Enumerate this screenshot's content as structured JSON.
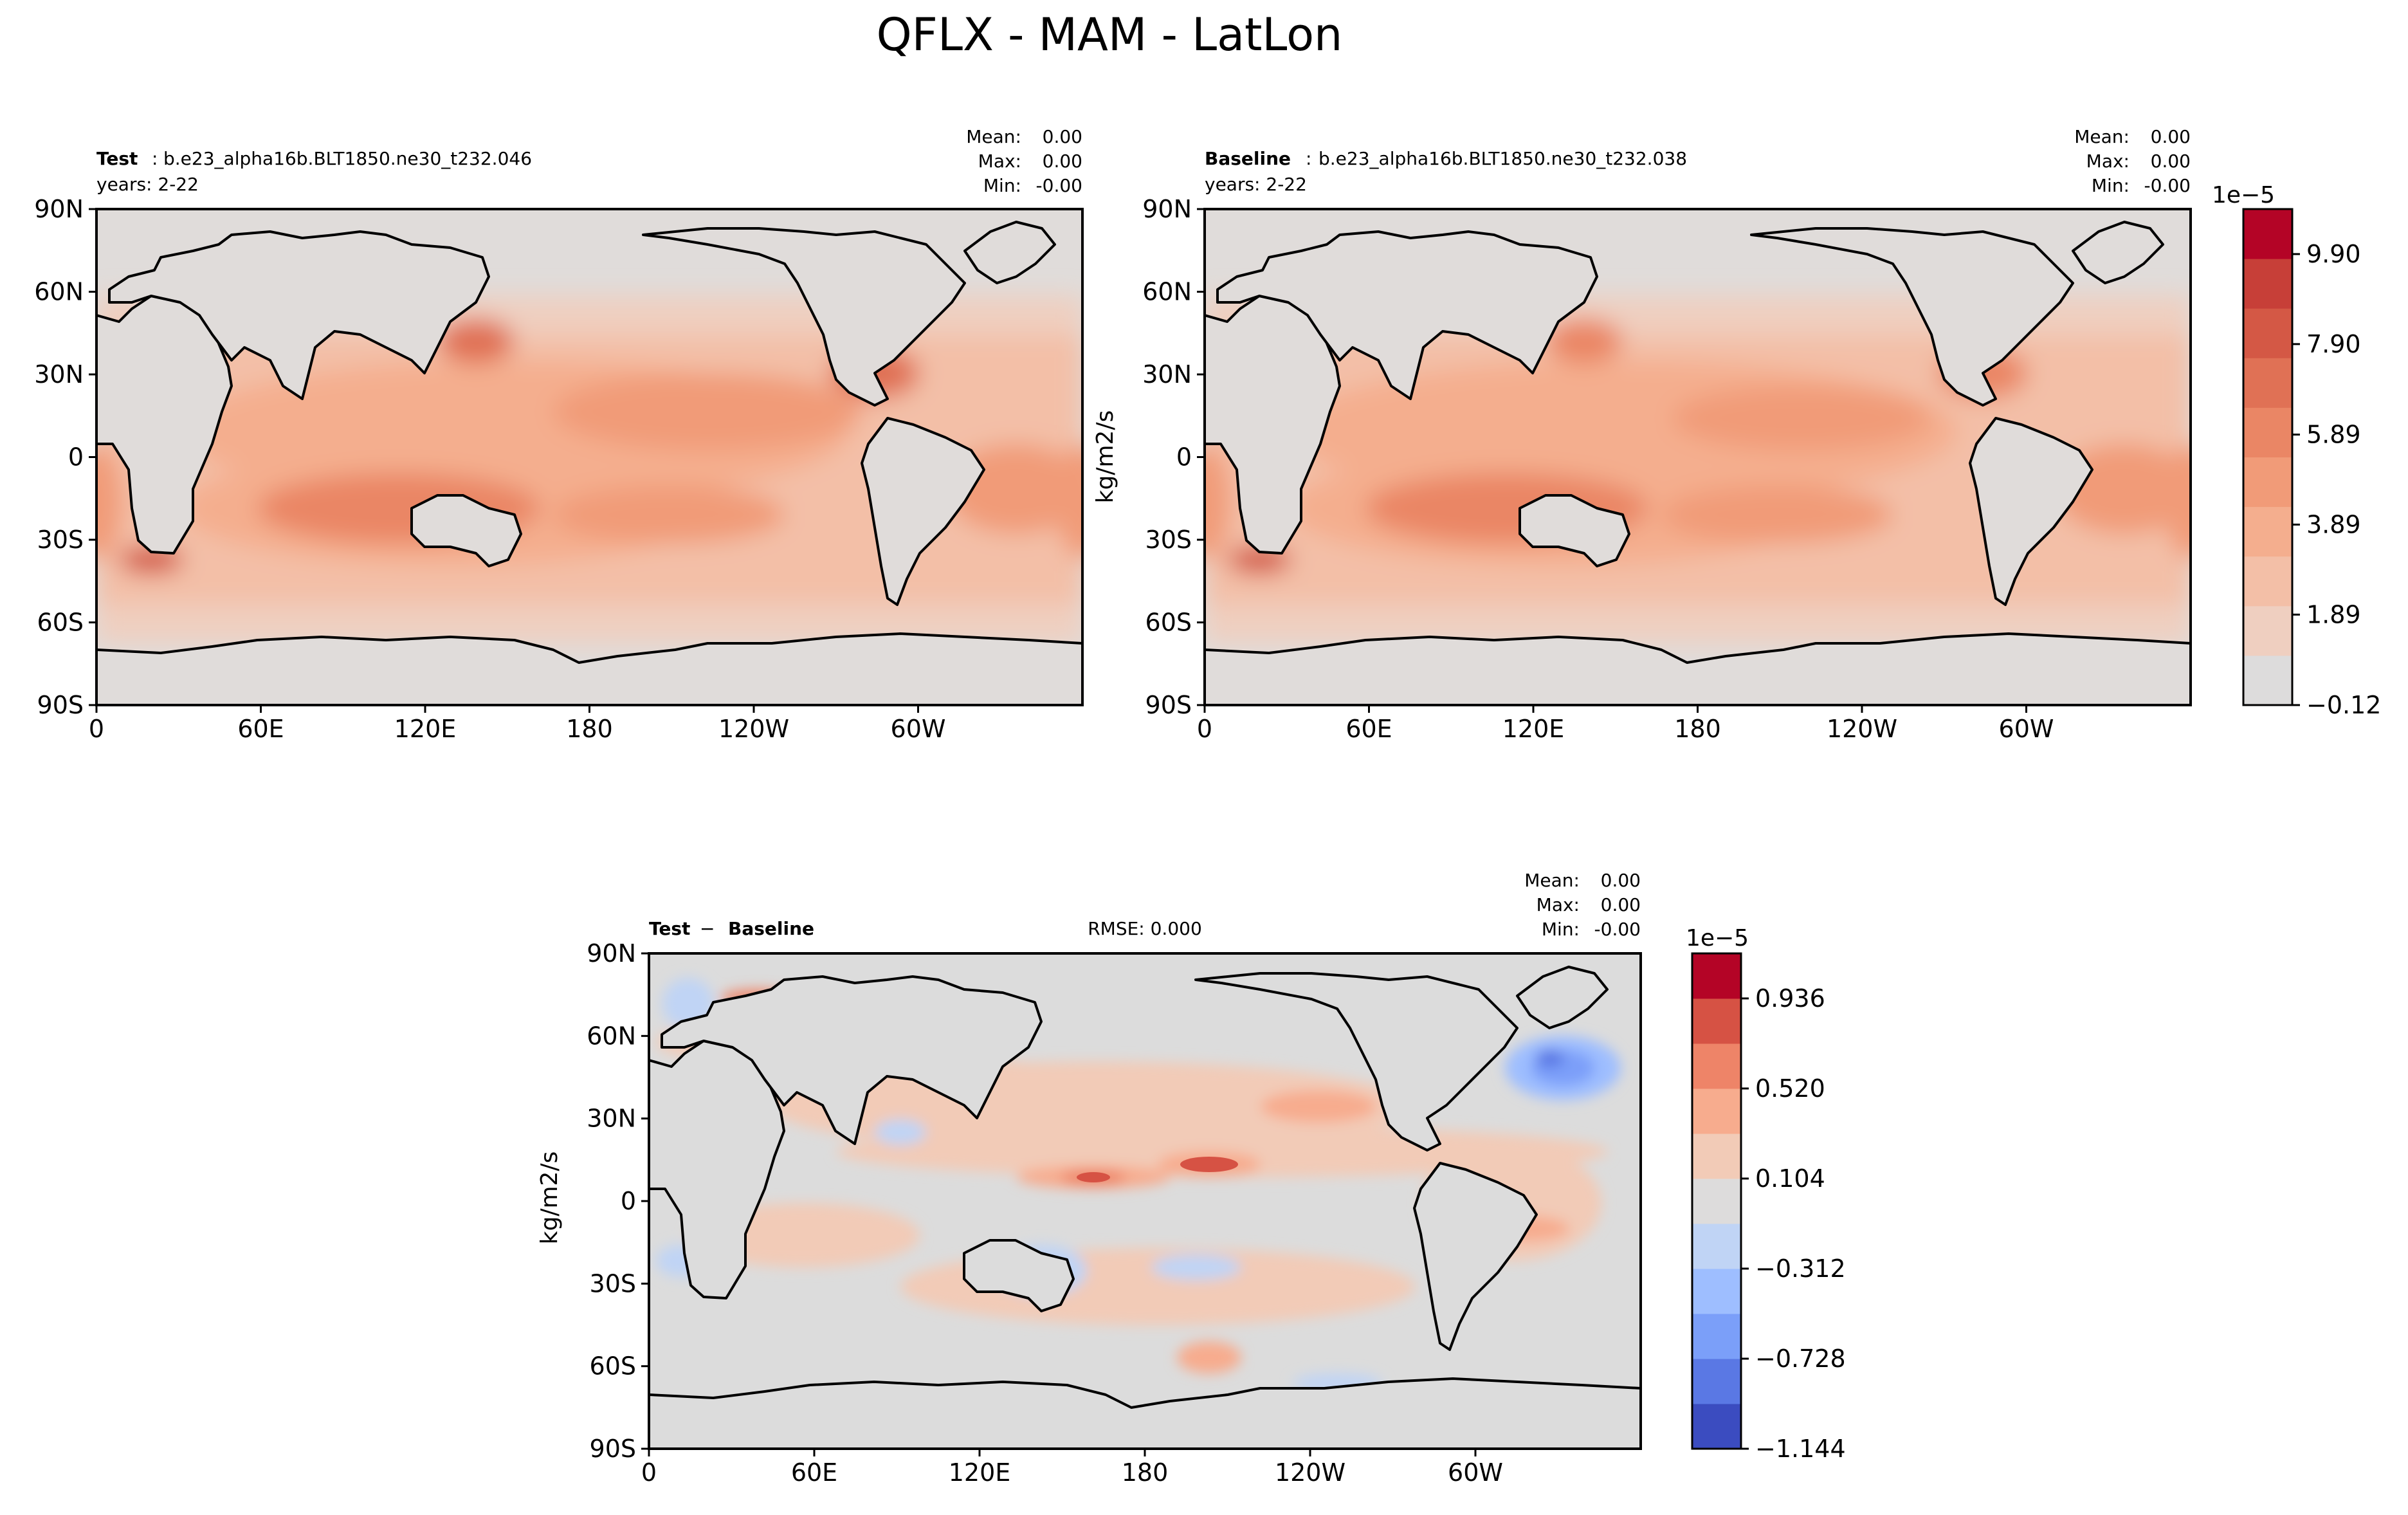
{
  "figure": {
    "title": "QFLX - MAM - LatLon"
  },
  "colors": {
    "axis": "#000000",
    "ocean_base": "#e0dcda",
    "land_diff": "#dcdcdc",
    "seq_levels": [
      "#dddcdc",
      "#efcfc0",
      "#f3bfa7",
      "#f4ae8e",
      "#f19b78",
      "#ea8665",
      "#e07155",
      "#d45845",
      "#c73f38",
      "#b40426"
    ],
    "div_levels": [
      "#3b4cc0",
      "#5a78e4",
      "#7b9ff9",
      "#9ebeff",
      "#c0d4f5",
      "#dddcdc",
      "#f2cbb7",
      "#f7ac8e",
      "#ee8468",
      "#d65244",
      "#b40426"
    ]
  },
  "chart_data": [
    {
      "type": "heatmap",
      "panel": "test",
      "name_label": "Test",
      "case_name": "b.e23_alpha16b.BLT1850.ne30_t232.046",
      "years_label": "years: 2-22",
      "stats": {
        "mean_label": "Mean:",
        "mean": "0.00",
        "max_label": "Max:",
        "max": "0.00",
        "min_label": "Min:",
        "min": "-0.00"
      },
      "xlim": [
        0,
        360
      ],
      "ylim": [
        -90,
        90
      ],
      "x_ticks": [
        "0",
        "60E",
        "120E",
        "180",
        "120W",
        "60W"
      ],
      "y_ticks": [
        "90N",
        "60N",
        "30N",
        "0",
        "30S",
        "60S",
        "90S"
      ],
      "units": "1e-5 kg/m2/s"
    },
    {
      "type": "heatmap",
      "panel": "baseline",
      "name_label": "Baseline",
      "case_name": "b.e23_alpha16b.BLT1850.ne30_t232.038",
      "years_label": "years: 2-22",
      "stats": {
        "mean_label": "Mean:",
        "mean": "0.00",
        "max_label": "Max:",
        "max": "0.00",
        "min_label": "Min:",
        "min": "-0.00"
      },
      "xlim": [
        0,
        360
      ],
      "ylim": [
        -90,
        90
      ],
      "x_ticks": [
        "0",
        "60E",
        "120E",
        "180",
        "120W",
        "60W"
      ],
      "y_ticks": [
        "90N",
        "60N",
        "30N",
        "0",
        "30S",
        "60S",
        "90S"
      ],
      "ylabel": "kg/m2/s",
      "colorbar": {
        "offset_label": "1e−5",
        "tick_labels": [
          "9.90",
          "7.90",
          "5.89",
          "3.89",
          "1.89",
          "−0.12"
        ],
        "tick_values": [
          9.9,
          7.9,
          5.89,
          3.89,
          1.89,
          -0.12
        ],
        "range": [
          -0.12,
          10.9
        ]
      }
    },
    {
      "type": "heatmap",
      "panel": "difference",
      "name_label_a": "Test",
      "name_label_op": "−",
      "name_label_b": "Baseline",
      "rmse_label": "RMSE: 0.000",
      "stats": {
        "mean_label": "Mean:",
        "mean": "0.00",
        "max_label": "Max:",
        "max": "0.00",
        "min_label": "Min:",
        "min": "-0.00"
      },
      "xlim": [
        0,
        360
      ],
      "ylim": [
        -90,
        90
      ],
      "x_ticks": [
        "0",
        "60E",
        "120E",
        "180",
        "120W",
        "60W"
      ],
      "y_ticks": [
        "90N",
        "60N",
        "30N",
        "0",
        "30S",
        "60S",
        "90S"
      ],
      "ylabel": "kg/m2/s",
      "colorbar": {
        "offset_label": "1e−5",
        "tick_labels": [
          "0.936",
          "0.520",
          "0.104",
          "−0.312",
          "−0.728",
          "−1.144"
        ],
        "tick_values": [
          0.936,
          0.52,
          0.104,
          -0.312,
          -0.728,
          -1.144
        ],
        "range": [
          -1.144,
          1.144
        ]
      }
    }
  ]
}
